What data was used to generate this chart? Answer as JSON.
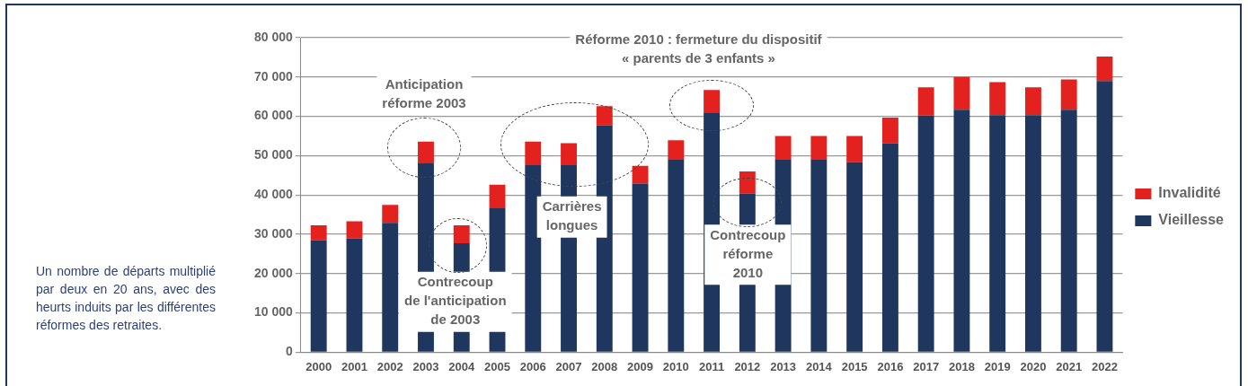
{
  "chart_data": {
    "type": "bar",
    "stacked": true,
    "categories": [
      "2000",
      "2001",
      "2002",
      "2003",
      "2004",
      "2005",
      "2006",
      "2007",
      "2008",
      "2009",
      "2010",
      "2011",
      "2012",
      "2013",
      "2014",
      "2015",
      "2016",
      "2017",
      "2018",
      "2019",
      "2020",
      "2021",
      "2022"
    ],
    "series": [
      {
        "name": "Vieillesse",
        "color": "#1f365f",
        "values": [
          28500,
          28900,
          32900,
          48200,
          27700,
          36600,
          47600,
          47600,
          57700,
          42900,
          49100,
          61000,
          40400,
          49100,
          49100,
          48300,
          53200,
          60200,
          61700,
          60300,
          60300,
          61700,
          69000
        ]
      },
      {
        "name": "Invalidité",
        "color": "#e3211f",
        "values": [
          3800,
          4400,
          4600,
          5400,
          4600,
          6000,
          6000,
          5600,
          4900,
          4500,
          4800,
          5700,
          5600,
          5900,
          5900,
          6700,
          6500,
          7200,
          8300,
          8400,
          7100,
          7700,
          6200
        ]
      }
    ],
    "ylim": [
      0,
      80000
    ],
    "yticks": [
      {
        "value": 0,
        "label": "0"
      },
      {
        "value": 10000,
        "label": "10 000"
      },
      {
        "value": 20000,
        "label": "20 000"
      },
      {
        "value": 30000,
        "label": "30 000"
      },
      {
        "value": 40000,
        "label": "40 000"
      },
      {
        "value": 50000,
        "label": "50 000"
      },
      {
        "value": 60000,
        "label": "60 000"
      },
      {
        "value": 70000,
        "label": "70 000"
      },
      {
        "value": 80000,
        "label": "80 000"
      }
    ],
    "grid": "y",
    "legend": "right",
    "annotations": [
      "Anticipation\nréforme 2003",
      "Contrecoup\nde l'anticipation\nde 2003",
      "Carrières\nlongues",
      "Réforme 2010 : fermeture du dispositif\n« parents de 3 enfants »",
      "Contrecoup\nréforme\n2010",
      "Un nombre de départs multiplié par deux en 20 ans, avec des heurts induits par les différentes réformes des retraites."
    ]
  }
}
